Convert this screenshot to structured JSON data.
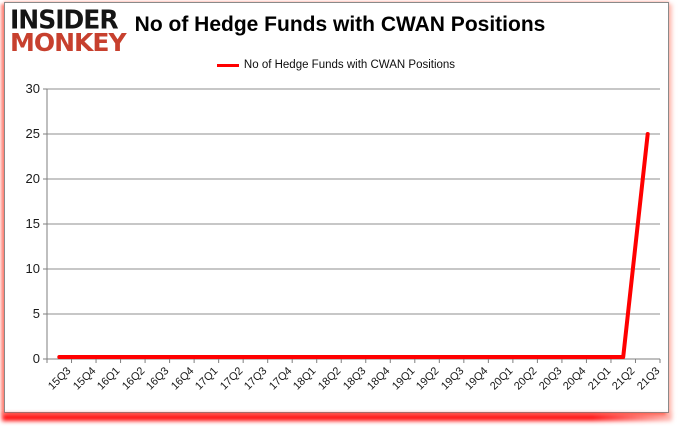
{
  "logo": {
    "line1": "INSIDER",
    "line2": "MONKEY"
  },
  "header": {
    "title": "No of Hedge Funds with CWAN Positions"
  },
  "legend": {
    "label": "No of Hedge Funds with CWAN Positions",
    "line_color": "#ff0000"
  },
  "colors": {
    "series_red": "#ff0000",
    "logo_red": "#c7402e",
    "gridline_gray": "#8f8f8f",
    "axis_gray": "#7f7f7f",
    "frame_glow_red": "#ff0000"
  },
  "chart_data": {
    "type": "line",
    "title": "No of Hedge Funds with CWAN Positions",
    "categories": [
      "15Q3",
      "15Q4",
      "16Q1",
      "16Q2",
      "16Q3",
      "16Q4",
      "17Q1",
      "17Q2",
      "17Q3",
      "17Q4",
      "18Q1",
      "18Q2",
      "18Q3",
      "18Q4",
      "19Q1",
      "19Q2",
      "19Q3",
      "19Q4",
      "20Q1",
      "20Q2",
      "20Q3",
      "20Q4",
      "21Q1",
      "21Q2",
      "21Q3"
    ],
    "series": [
      {
        "name": "No of Hedge Funds with CWAN Positions",
        "color": "#ff0000",
        "values": [
          0,
          0,
          0,
          0,
          0,
          0,
          0,
          0,
          0,
          0,
          0,
          0,
          0,
          0,
          0,
          0,
          0,
          0,
          0,
          0,
          0,
          0,
          0,
          0,
          25
        ]
      }
    ],
    "xlabel": "",
    "ylabel": "",
    "ylim": [
      0,
      30
    ],
    "yticks": [
      0,
      5,
      10,
      15,
      20,
      25,
      30
    ],
    "grid": true,
    "legend_position": "top-center"
  }
}
